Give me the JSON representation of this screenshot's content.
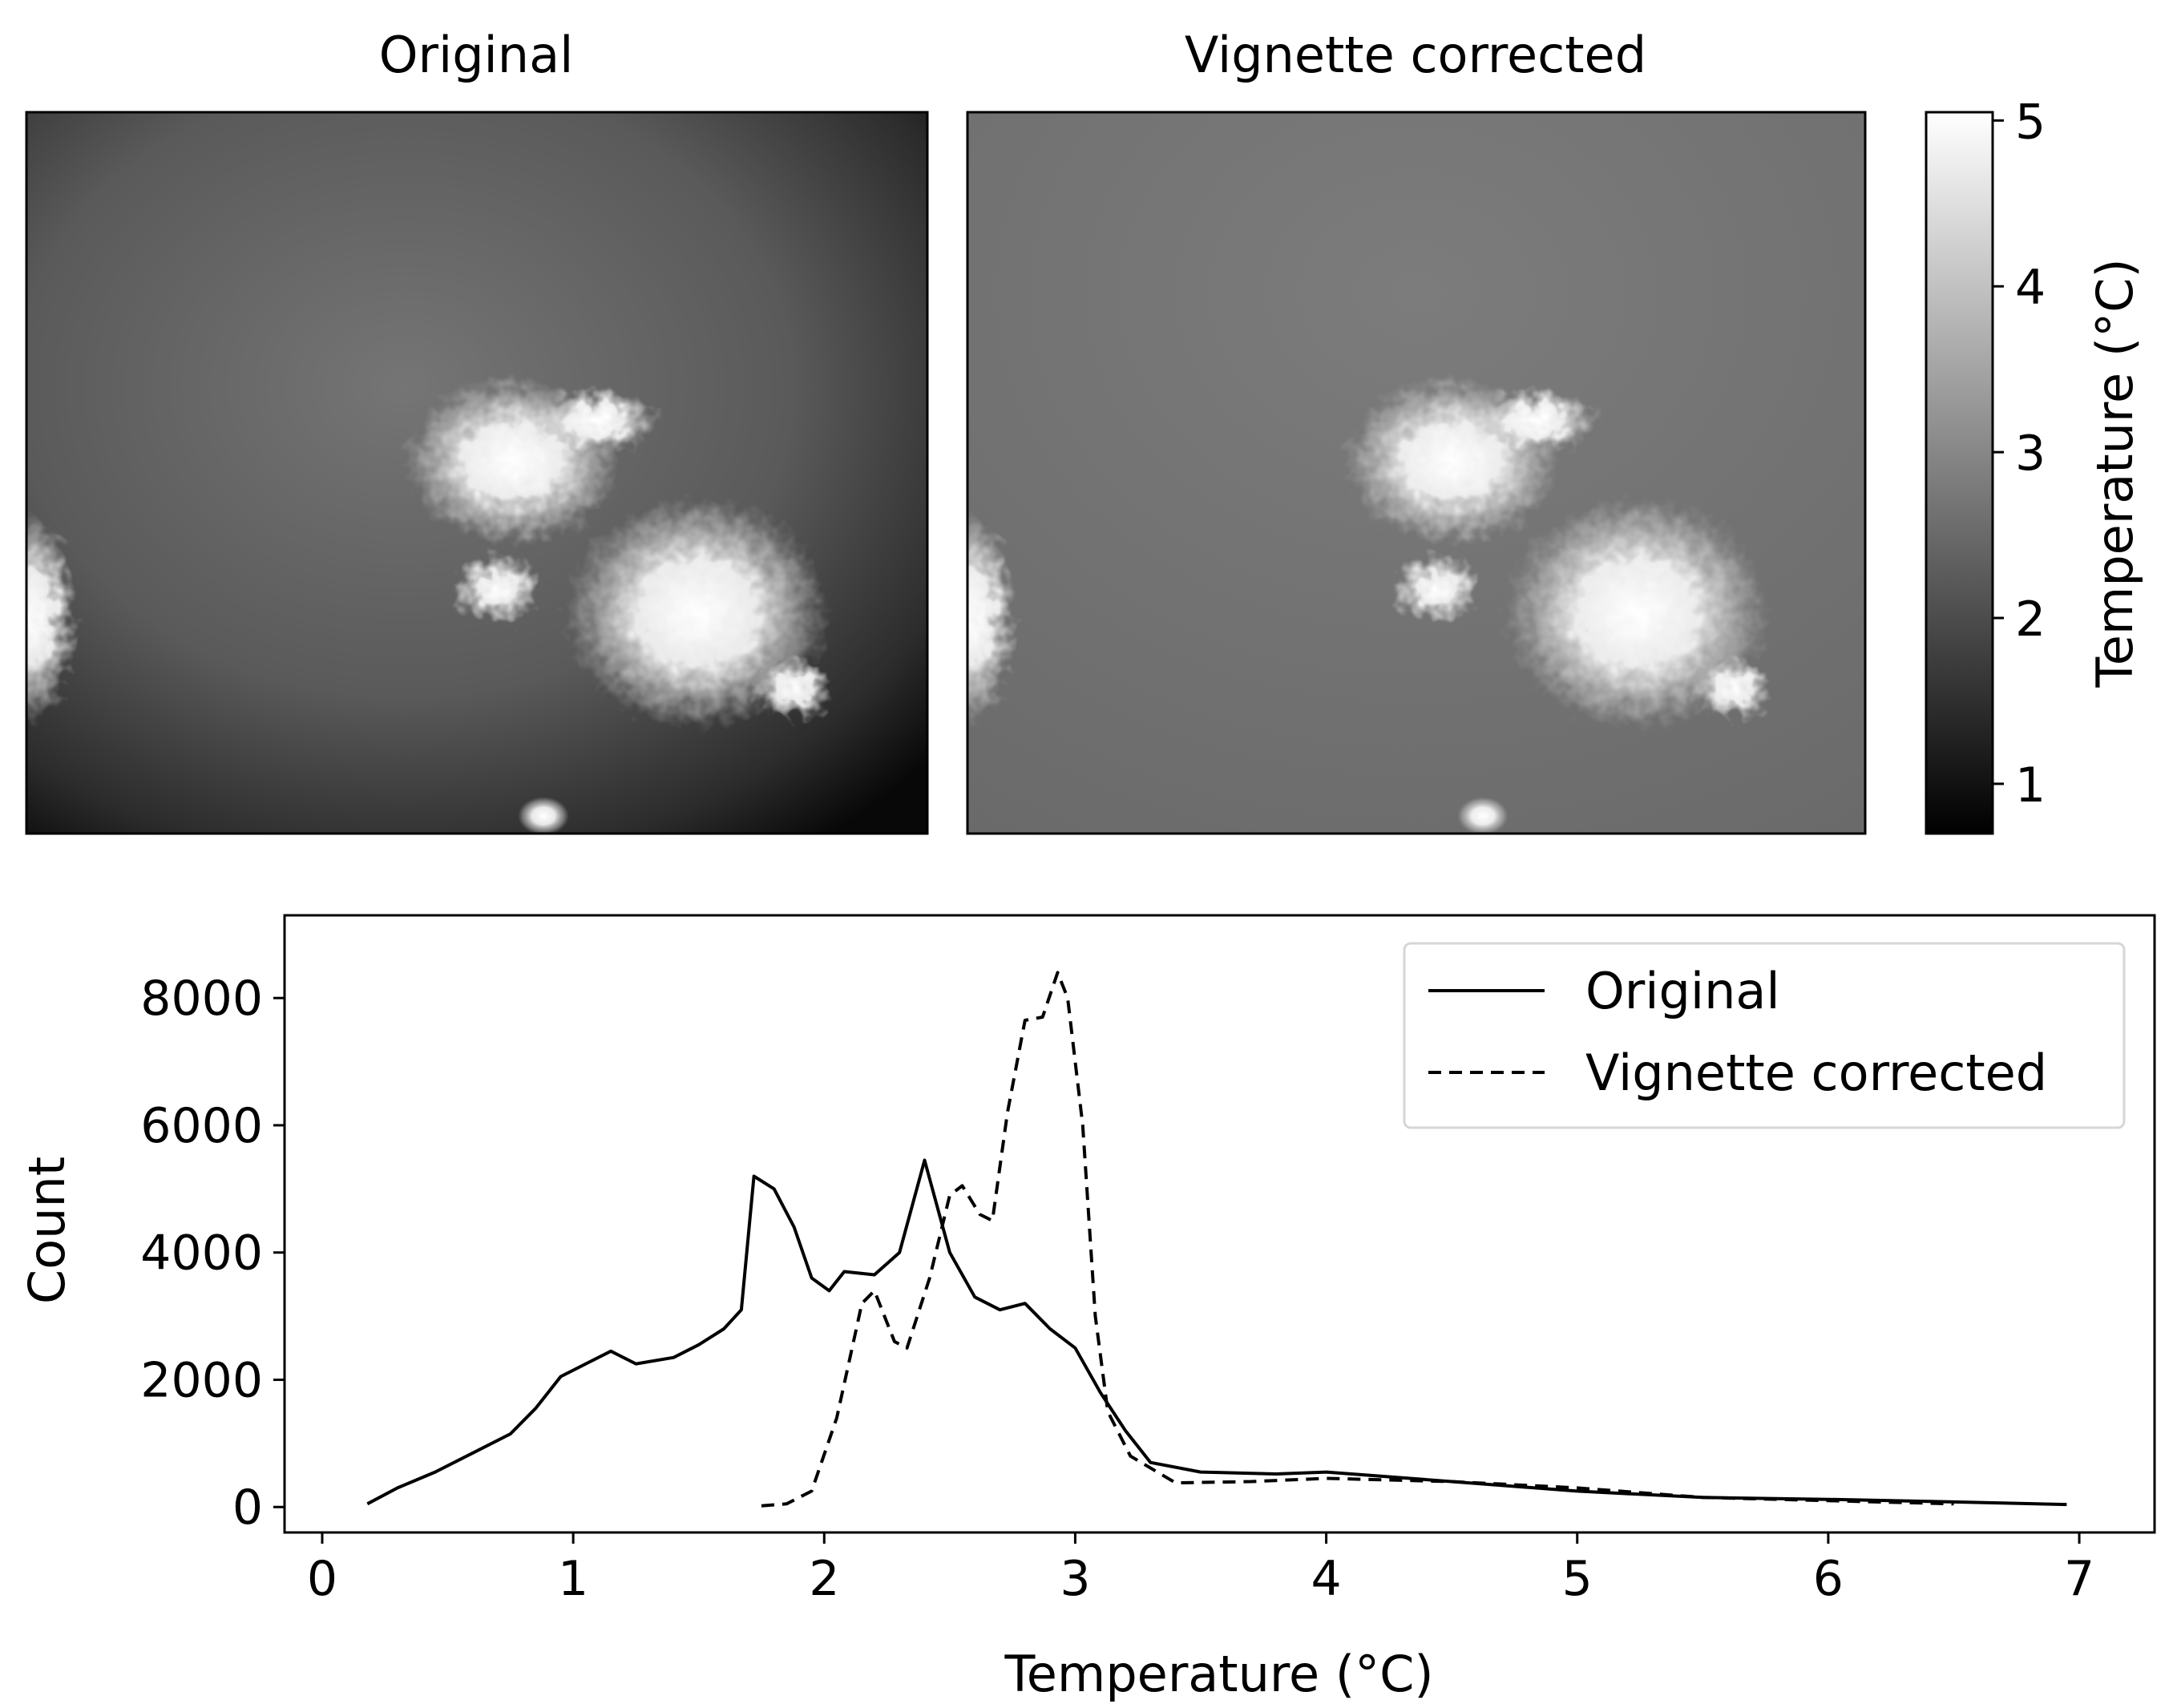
{
  "figure": {
    "panel_titles": [
      "Original",
      "Vignette corrected"
    ]
  },
  "colorbar": {
    "label": "Temperature (°C)",
    "ticks": [
      1,
      2,
      3,
      4,
      5
    ],
    "range": [
      0.7,
      5.05
    ],
    "colormap": "gray"
  },
  "chart_data": {
    "type": "line",
    "xlabel": "Temperature (°C)",
    "ylabel": "Count",
    "xlim": [
      -0.15,
      7.3
    ],
    "ylim": [
      -400,
      9300
    ],
    "xticks": [
      0,
      1,
      2,
      3,
      4,
      5,
      6,
      7
    ],
    "yticks": [
      0,
      2000,
      4000,
      6000,
      8000
    ],
    "grid": false,
    "legend": {
      "placement": "top-right"
    },
    "series": [
      {
        "name": "Original",
        "style": "solid",
        "color": "#000000",
        "points": [
          [
            0.18,
            50
          ],
          [
            0.3,
            300
          ],
          [
            0.45,
            550
          ],
          [
            0.6,
            850
          ],
          [
            0.75,
            1150
          ],
          [
            0.85,
            1550
          ],
          [
            0.95,
            2050
          ],
          [
            1.05,
            2250
          ],
          [
            1.15,
            2450
          ],
          [
            1.25,
            2250
          ],
          [
            1.4,
            2350
          ],
          [
            1.5,
            2550
          ],
          [
            1.6,
            2800
          ],
          [
            1.67,
            3100
          ],
          [
            1.72,
            5200
          ],
          [
            1.8,
            5000
          ],
          [
            1.88,
            4400
          ],
          [
            1.95,
            3600
          ],
          [
            2.02,
            3400
          ],
          [
            2.08,
            3700
          ],
          [
            2.2,
            3650
          ],
          [
            2.3,
            4000
          ],
          [
            2.4,
            5450
          ],
          [
            2.5,
            4000
          ],
          [
            2.6,
            3300
          ],
          [
            2.7,
            3100
          ],
          [
            2.8,
            3200
          ],
          [
            2.9,
            2800
          ],
          [
            3.0,
            2500
          ],
          [
            3.1,
            1800
          ],
          [
            3.2,
            1200
          ],
          [
            3.3,
            700
          ],
          [
            3.5,
            550
          ],
          [
            3.8,
            520
          ],
          [
            4.0,
            550
          ],
          [
            4.5,
            400
          ],
          [
            5.0,
            250
          ],
          [
            5.5,
            150
          ],
          [
            6.0,
            120
          ],
          [
            6.5,
            80
          ],
          [
            6.95,
            40
          ]
        ]
      },
      {
        "name": "Vignette corrected",
        "style": "dashed",
        "color": "#000000",
        "points": [
          [
            1.75,
            20
          ],
          [
            1.85,
            50
          ],
          [
            1.95,
            250
          ],
          [
            2.05,
            1400
          ],
          [
            2.15,
            3200
          ],
          [
            2.2,
            3400
          ],
          [
            2.28,
            2600
          ],
          [
            2.33,
            2500
          ],
          [
            2.42,
            3600
          ],
          [
            2.5,
            4900
          ],
          [
            2.55,
            5050
          ],
          [
            2.62,
            4600
          ],
          [
            2.67,
            4500
          ],
          [
            2.73,
            6200
          ],
          [
            2.8,
            7650
          ],
          [
            2.87,
            7700
          ],
          [
            2.93,
            8400
          ],
          [
            2.97,
            8000
          ],
          [
            3.03,
            6000
          ],
          [
            3.08,
            3000
          ],
          [
            3.13,
            1500
          ],
          [
            3.22,
            800
          ],
          [
            3.4,
            380
          ],
          [
            3.7,
            400
          ],
          [
            4.0,
            450
          ],
          [
            4.5,
            400
          ],
          [
            5.0,
            300
          ],
          [
            5.5,
            150
          ],
          [
            6.0,
            100
          ],
          [
            6.5,
            50
          ]
        ]
      }
    ]
  }
}
